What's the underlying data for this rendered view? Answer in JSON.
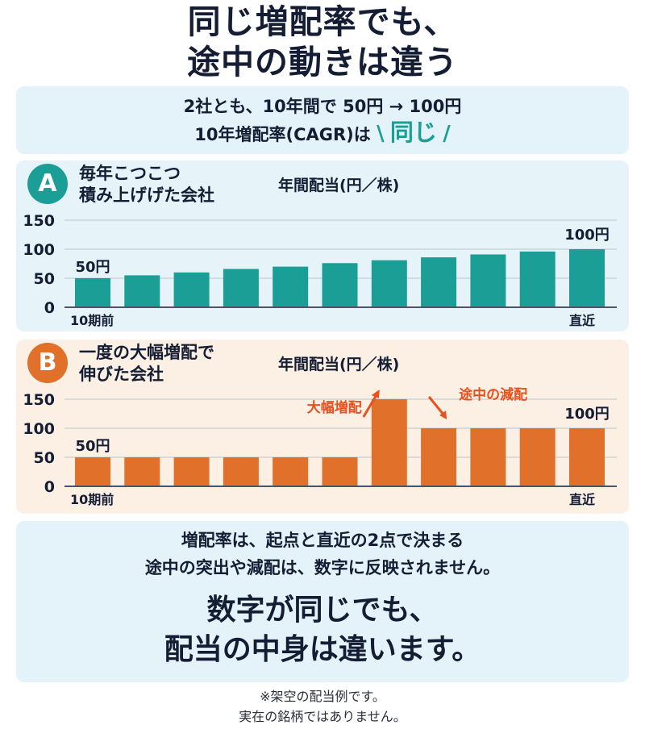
{
  "title": {
    "line1": "同じ増配率でも、",
    "line2": "途中の動きは違う"
  },
  "intro": {
    "line1": "2社とも、10年間で 50円 → 100円",
    "line2_prefix": "10年増配率(CAGR)は",
    "slash_left": "\\",
    "line2_emphasis": "同じ",
    "slash_right": "/"
  },
  "panel_a": {
    "badge": "A",
    "title_line1": "毎年こつこつ",
    "title_line2": "積み上げげた会社",
    "unit_label": "年間配当(円／株)"
  },
  "panel_b": {
    "badge": "B",
    "title_line1": "一度の大幅増配で",
    "title_line2": "伸びた会社",
    "unit_label": "年間配当(円／株)",
    "annotation_increase": "大幅増配",
    "annotation_cut": "途中の減配"
  },
  "chart_data": [
    {
      "type": "bar",
      "color": "#1a9e96",
      "ylim": [
        0,
        150
      ],
      "yticks": [
        "0",
        "50",
        "100",
        "150"
      ],
      "x_start_label": "10期前",
      "x_end_label": "直近",
      "first_value_label": "50円",
      "last_value_label": "100円",
      "values": [
        50,
        55,
        60,
        66,
        70,
        76,
        81,
        86,
        91,
        96,
        100
      ]
    },
    {
      "type": "bar",
      "color": "#e0702a",
      "ylim": [
        0,
        150
      ],
      "yticks": [
        "0",
        "50",
        "100",
        "150"
      ],
      "x_start_label": "10期前",
      "x_end_label": "直近",
      "first_value_label": "50円",
      "last_value_label": "100円",
      "values": [
        50,
        50,
        50,
        50,
        50,
        50,
        150,
        100,
        100,
        100,
        100
      ]
    }
  ],
  "conclusion": {
    "line1": "増配率は、起点と直近の2点で決まる",
    "line2": "途中の突出や減配は、数字に反映されません。",
    "line3": "数字が同じでも、",
    "line4": "配当の中身は違います。"
  },
  "notes": {
    "line1": "※架空の配当例です。",
    "line2": "実在の銘柄ではありません。"
  },
  "colors": {
    "navy": "#141d33",
    "teal": "#1a9e96",
    "orange": "#e0702a",
    "annotation_red": "#e8501e",
    "light_blue_bg": "#e4f3fa",
    "light_orange_bg": "#fcf0e4"
  }
}
